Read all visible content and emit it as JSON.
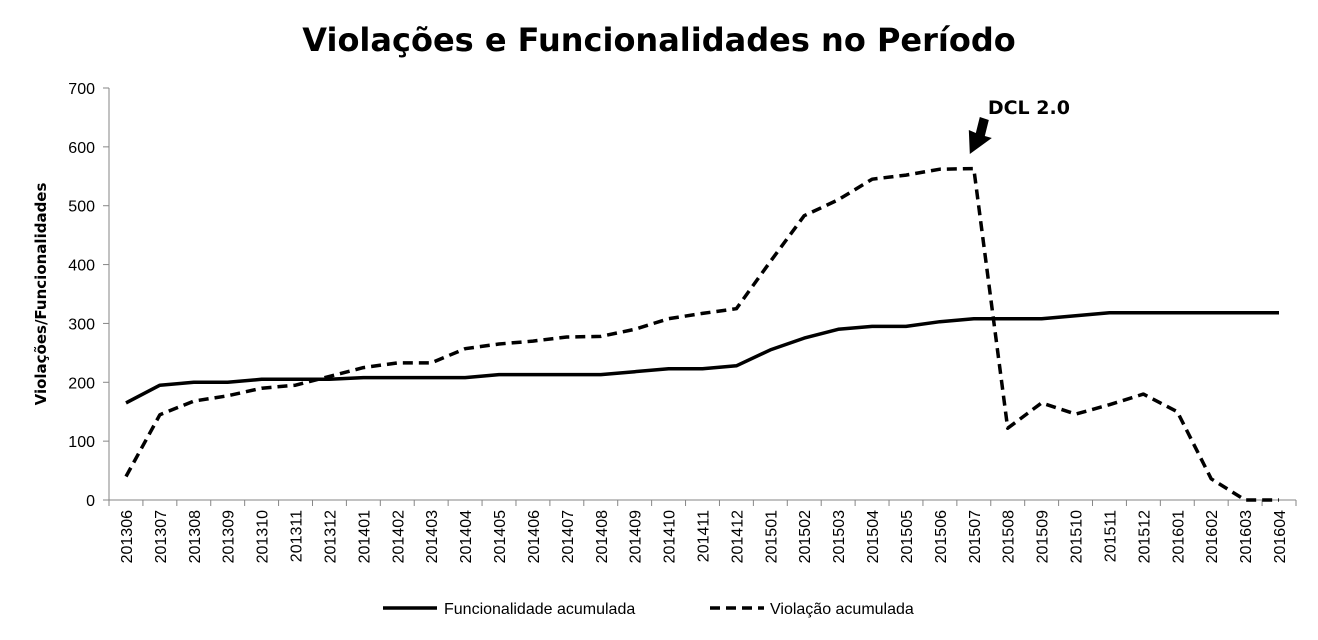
{
  "chart_data": {
    "type": "line",
    "title": "Violações e Funcionalidades no Período",
    "xlabel": "",
    "ylabel": "Violações/Funcionalidades",
    "ylim": [
      0,
      700
    ],
    "yticks": [
      0,
      100,
      200,
      300,
      400,
      500,
      600,
      700
    ],
    "grid": false,
    "legend_position": "bottom",
    "categories": [
      "201306",
      "201307",
      "201308",
      "201309",
      "201310",
      "201311",
      "201312",
      "201401",
      "201402",
      "201403",
      "201404",
      "201405",
      "201406",
      "201407",
      "201408",
      "201409",
      "201410",
      "201411",
      "201412",
      "201501",
      "201502",
      "201503",
      "201504",
      "201505",
      "201506",
      "201507",
      "201508",
      "201509",
      "201510",
      "201511",
      "201512",
      "201601",
      "201602",
      "201603",
      "201604"
    ],
    "series": [
      {
        "name": "Funcionalidade acumulada",
        "style": "solid",
        "color": "#000000",
        "values": [
          165,
          195,
          200,
          200,
          205,
          205,
          205,
          208,
          208,
          208,
          208,
          213,
          213,
          213,
          213,
          218,
          223,
          223,
          228,
          255,
          275,
          290,
          295,
          295,
          303,
          308,
          308,
          308,
          313,
          318,
          318,
          318,
          318,
          318,
          318
        ]
      },
      {
        "name": "Violação acumulada",
        "style": "dashed",
        "color": "#000000",
        "values": [
          40,
          145,
          168,
          177,
          190,
          195,
          210,
          225,
          233,
          233,
          257,
          265,
          270,
          277,
          278,
          290,
          308,
          317,
          325,
          405,
          483,
          510,
          545,
          552,
          562,
          563,
          122,
          165,
          146,
          162,
          180,
          150,
          36,
          0,
          0
        ]
      }
    ],
    "annotations": [
      {
        "text": "DCL 2.0",
        "category": "201507",
        "arrow": "down"
      }
    ]
  }
}
